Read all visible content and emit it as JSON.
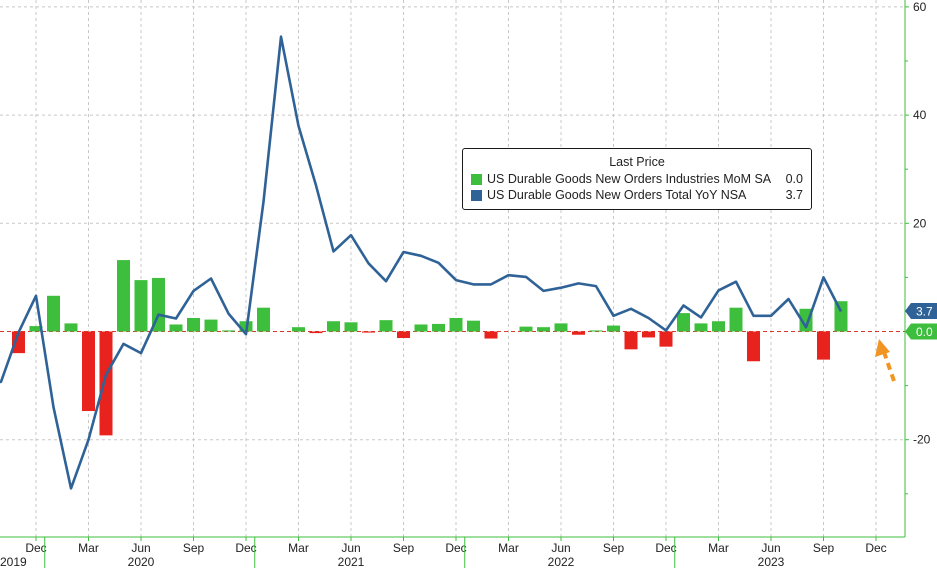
{
  "chart_data": {
    "type": "bar+line",
    "x_start": "2019-08",
    "x_months": [
      "2019-08",
      "2019-09",
      "2019-10",
      "2019-11",
      "2019-12",
      "2020-01",
      "2020-02",
      "2020-03",
      "2020-04",
      "2020-05",
      "2020-06",
      "2020-07",
      "2020-08",
      "2020-09",
      "2020-10",
      "2020-11",
      "2020-12",
      "2021-01",
      "2021-02",
      "2021-03",
      "2021-04",
      "2021-05",
      "2021-06",
      "2021-07",
      "2021-08",
      "2021-09",
      "2021-10",
      "2021-11",
      "2021-12",
      "2022-01",
      "2022-02",
      "2022-03",
      "2022-04",
      "2022-05",
      "2022-06",
      "2022-07",
      "2022-08",
      "2022-09",
      "2022-10",
      "2022-11",
      "2022-12",
      "2023-01",
      "2023-02",
      "2023-03",
      "2023-04",
      "2023-05",
      "2023-06",
      "2023-07",
      "2023-08",
      "2023-09",
      "2023-10",
      "2023-11",
      "2023-12"
    ],
    "series": [
      {
        "name": "US Durable Goods New Orders Industries MoM SA",
        "kind": "bar",
        "last_price": "0.0",
        "values": [
          -4.0,
          1.0,
          6.6,
          1.5,
          -14.7,
          -19.2,
          13.2,
          9.5,
          9.9,
          1.3,
          2.5,
          2.2,
          0.2,
          1.9,
          4.4,
          0.0,
          0.8,
          -0.3,
          1.9,
          1.7,
          -0.2,
          2.1,
          -1.2,
          1.3,
          1.4,
          2.5,
          2.0,
          -1.3,
          0.0,
          0.9,
          0.8,
          1.5,
          -0.6,
          0.2,
          1.1,
          -3.3,
          -1.1,
          -2.8,
          3.4,
          1.5,
          1.9,
          4.4,
          -5.5,
          0.0,
          0.0,
          4.2,
          -5.2,
          5.6,
          0.0
        ],
        "first_month": "2019-11",
        "color_positive": "#3dbf3d",
        "color_negative": "#e8231d"
      },
      {
        "name": "US Durable Goods New Orders Total YoY NSA",
        "kind": "line",
        "last_price": "3.7",
        "values": [
          -5.5,
          -10.2,
          -9.3,
          -0.2,
          6.6,
          -14.0,
          -29.0,
          -20.0,
          -8.0,
          -2.3,
          -4.0,
          3.1,
          2.4,
          7.5,
          9.8,
          3.3,
          -0.5,
          24.0,
          54.5,
          38.0,
          27.0,
          14.8,
          17.8,
          12.6,
          9.3,
          14.7,
          14.0,
          12.7,
          9.5,
          8.7,
          8.7,
          10.4,
          10.1,
          7.5,
          8.1,
          8.9,
          8.4,
          2.9,
          4.2,
          2.5,
          0.2,
          4.8,
          2.6,
          7.6,
          9.2,
          2.9,
          2.9,
          6.0,
          0.8,
          10.0,
          3.7
        ],
        "first_month": "2019-08",
        "color": "#2f6296"
      }
    ],
    "legend": {
      "title": "Last Price",
      "placement": "top-right"
    },
    "y_axis": {
      "position": "right",
      "ticks": [
        "60",
        "40",
        "20",
        "0.0",
        "-20"
      ],
      "tick_values": [
        60,
        40,
        20,
        0,
        -20
      ],
      "ylim": [
        -32,
        62
      ]
    },
    "x_axis": {
      "month_ticks": [
        "Dec",
        "Mar",
        "Jun",
        "Sep",
        "Dec",
        "Mar",
        "Jun",
        "Sep",
        "Dec",
        "Mar",
        "Jun",
        "Sep",
        "Dec",
        "Mar",
        "Jun",
        "Sep",
        "Dec"
      ],
      "month_tick_dates": [
        "2019-12",
        "2020-03",
        "2020-06",
        "2020-09",
        "2020-12",
        "2021-03",
        "2021-06",
        "2021-09",
        "2021-12",
        "2022-03",
        "2022-06",
        "2022-09",
        "2022-12",
        "2023-03",
        "2023-06",
        "2023-09",
        "2023-12"
      ],
      "year_labels": [
        "2019",
        "2020",
        "2021",
        "2022",
        "2023"
      ],
      "year_label_dates": [
        "2019-10",
        "2020-06",
        "2021-06",
        "2022-06",
        "2023-06"
      ]
    },
    "badges": [
      {
        "value": "3.7",
        "color": "#2f6296"
      },
      {
        "value": "0.0",
        "color": "#3dbf3d"
      }
    ],
    "annotation_arrow_color": "#f29422",
    "grid": true
  }
}
